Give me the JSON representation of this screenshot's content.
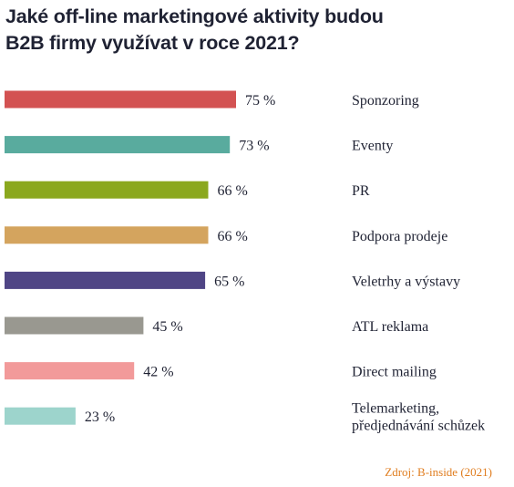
{
  "chart_data": {
    "type": "bar",
    "orientation": "horizontal",
    "title_lines": [
      "Jaké off-line marketingové aktivity budou",
      "B2B firmy využívat v roce 2021?"
    ],
    "categories": [
      "Sponzoring",
      "Eventy",
      "PR",
      "Podpora prodeje",
      "Veletrhy a výstavy",
      "ATL reklama",
      "Direct mailing",
      "Telemarketing, předjednávání schůzek"
    ],
    "category_lines": [
      [
        "Sponzoring"
      ],
      [
        "Eventy"
      ],
      [
        "PR"
      ],
      [
        "Podpora prodeje"
      ],
      [
        "Veletrhy a výstavy"
      ],
      [
        "ATL reklama"
      ],
      [
        "Direct mailing"
      ],
      [
        "Telemarketing,",
        "předjednávání schůzek"
      ]
    ],
    "values": [
      75,
      73,
      66,
      66,
      65,
      45,
      42,
      23
    ],
    "value_labels": [
      "75 %",
      "73 %",
      "66 %",
      "66 %",
      "65 %",
      "45 %",
      "42 %",
      "23 %"
    ],
    "colors": [
      "#d35252",
      "#59ab9e",
      "#8ba81e",
      "#d4a45e",
      "#4f4585",
      "#999890",
      "#f29a9a",
      "#9dd4cc"
    ],
    "unit": "%",
    "xlim": [
      0,
      100
    ],
    "grid": false,
    "legend": "none",
    "source": "Zdroj: B-inside (2021)"
  }
}
